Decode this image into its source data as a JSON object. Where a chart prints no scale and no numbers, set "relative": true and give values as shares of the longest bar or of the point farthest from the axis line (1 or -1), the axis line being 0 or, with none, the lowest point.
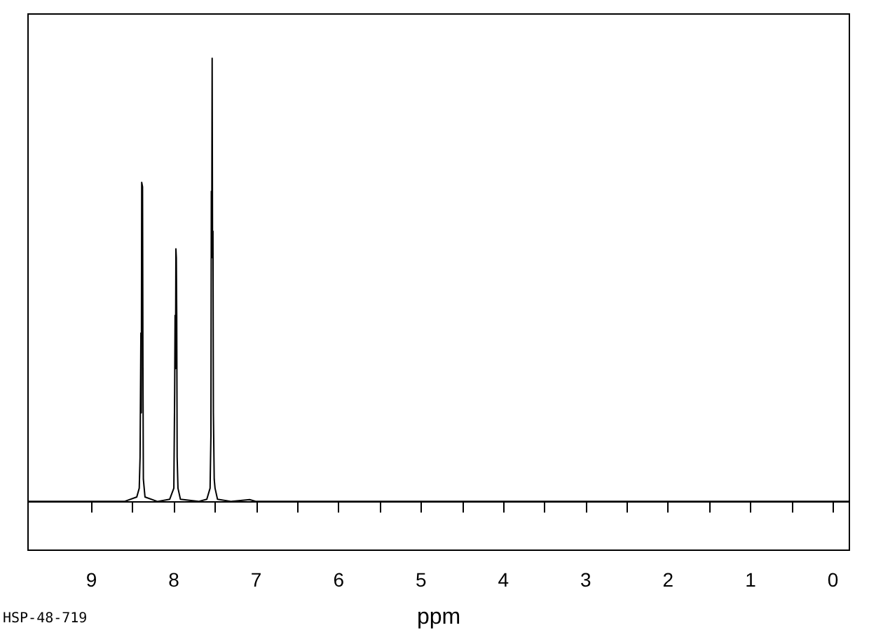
{
  "chart_data": {
    "type": "line",
    "relative": true,
    "xlabel": "ppm",
    "annotations": [
      "HSP-48-719"
    ],
    "marker": "none",
    "line_style": "solid",
    "grid": false,
    "xlim": [
      9.77,
      -0.2
    ],
    "xticks": [
      9,
      {
        "value": 8.5,
        "label": null
      },
      8,
      {
        "value": 7.5,
        "label": null
      },
      7,
      {
        "value": 6.5,
        "label": null
      },
      6,
      {
        "value": 5.5,
        "label": null
      },
      5,
      {
        "value": 4.5,
        "label": null
      },
      4,
      {
        "value": 3.5,
        "label": null
      },
      3,
      {
        "value": 2.5,
        "label": null
      },
      2,
      {
        "value": 1.5,
        "label": null
      },
      1,
      {
        "value": 0.5,
        "label": null
      },
      0
    ],
    "series": [
      {
        "color": "#000000",
        "x": [
          9.77,
          8.6,
          8.45,
          8.42,
          8.41,
          8.4,
          8.395,
          8.39,
          8.38,
          8.375,
          8.37,
          8.35,
          8.2,
          8.05,
          8.0,
          7.99,
          7.985,
          7.98,
          7.975,
          7.97,
          7.965,
          7.96,
          7.95,
          7.92,
          7.7,
          7.6,
          7.56,
          7.55,
          7.545,
          7.54,
          7.535,
          7.53,
          7.525,
          7.52,
          7.51,
          7.5,
          7.47,
          7.3,
          7.08,
          7.0,
          -0.2
        ],
        "values": [
          0,
          0,
          0.01,
          0.03,
          0.1,
          0.38,
          0.2,
          0.72,
          0.71,
          0.3,
          0.05,
          0.01,
          0,
          0.005,
          0.03,
          0.25,
          0.42,
          0.3,
          0.57,
          0.55,
          0.42,
          0.1,
          0.03,
          0.005,
          0,
          0.005,
          0.03,
          0.15,
          0.7,
          0.6,
          1.0,
          0.55,
          0.61,
          0.2,
          0.05,
          0.03,
          0.005,
          0,
          0.004,
          0,
          0
        ]
      }
    ]
  }
}
